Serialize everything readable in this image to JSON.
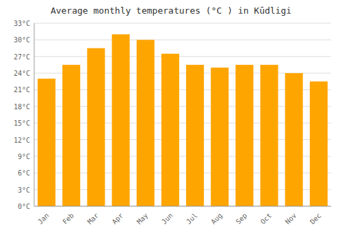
{
  "chart_data": {
    "type": "bar",
    "title": "Average monthly temperatures (°C ) in Kūdligi",
    "categories": [
      "Jan",
      "Feb",
      "Mar",
      "Apr",
      "May",
      "Jun",
      "Jul",
      "Aug",
      "Sep",
      "Oct",
      "Nov",
      "Dec"
    ],
    "values": [
      23.0,
      25.5,
      28.5,
      31.0,
      30.0,
      27.5,
      25.5,
      25.0,
      25.5,
      25.5,
      24.0,
      22.5
    ],
    "color": "#FFA500",
    "ylim": [
      0,
      33
    ],
    "yticks": [
      {
        "value": 0,
        "label": "0°C"
      },
      {
        "value": 3,
        "label": "3°C"
      },
      {
        "value": 6,
        "label": "6°C"
      },
      {
        "value": 9,
        "label": "9°C"
      },
      {
        "value": 12,
        "label": "12°C"
      },
      {
        "value": 15,
        "label": "15°C"
      },
      {
        "value": 18,
        "label": "18°C"
      },
      {
        "value": 21,
        "label": "21°C"
      },
      {
        "value": 24,
        "label": "24°C"
      },
      {
        "value": 27,
        "label": "27°C"
      },
      {
        "value": 30,
        "label": "30°C"
      },
      {
        "value": 33,
        "label": "33°C"
      }
    ],
    "grid": true
  }
}
